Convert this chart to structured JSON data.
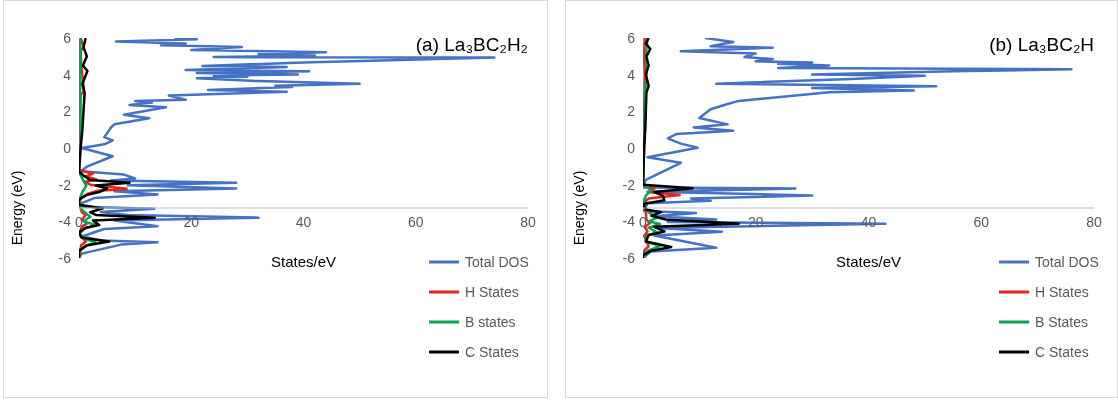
{
  "chart_data": [
    {
      "type": "line",
      "orientation": "horizontal",
      "title": "(a) La₃BC₂H₂",
      "xlabel": "States/eV",
      "ylabel": "Energy (eV)",
      "xlim": [
        0,
        80
      ],
      "xticks": [
        0,
        20,
        40,
        60,
        80
      ],
      "ylim": [
        -6,
        6
      ],
      "yticks": [
        -6,
        -4,
        -2,
        0,
        2,
        4,
        6
      ],
      "legend": "bottom right",
      "series": [
        {
          "name": "Total DOS",
          "color": "#4472c4",
          "x": [
            6.0,
            5.93,
            5.81,
            5.7,
            5.6,
            5.51,
            5.35,
            5.22,
            5.11,
            5.04,
            4.96,
            4.93,
            4.67,
            4.47,
            4.42,
            4.26,
            4.18,
            4.09,
            4.01,
            3.95,
            3.89,
            3.8,
            3.65,
            3.51,
            3.39,
            3.33,
            3.16,
            3.07,
            2.86,
            2.63,
            2.57,
            2.48,
            2.34,
            2.22,
            1.81,
            1.62,
            1.29,
            1.12,
            0.59,
            0.42,
            0.2,
            0.0,
            -0.45,
            -1.0,
            -1.27,
            -1.45,
            -1.66,
            -1.77,
            -1.89,
            -2.03,
            -2.21,
            -2.36,
            -2.53,
            -2.73,
            -3.02,
            -3.2,
            -3.31,
            -3.49,
            -3.66,
            -3.8,
            -3.95,
            -4.27,
            -4.42,
            -4.83,
            -5.04,
            -5.14,
            -5.27,
            -5.76,
            -6.0
          ],
          "values": [
            17,
            21,
            6.6,
            19,
            14.6,
            29,
            20,
            44,
            32,
            42,
            24,
            74,
            40,
            22,
            37,
            19,
            41,
            21,
            39,
            24,
            30,
            21,
            32,
            50,
            35,
            38,
            23,
            37,
            16,
            19,
            10,
            13,
            9,
            15.5,
            8,
            12.5,
            6.3,
            5.7,
            4.5,
            6,
            4.5,
            0.5,
            6,
            1.5,
            0.4,
            8,
            10,
            5.7,
            28,
            8.7,
            28,
            6.3,
            14,
            2.7,
            0.4,
            0.4,
            13.4,
            3.9,
            8.7,
            32,
            6.3,
            14,
            4.5,
            0.5,
            3.9,
            14,
            7.5,
            0.5,
            0
          ]
        },
        {
          "name": "H States",
          "color": "#e8221e",
          "x": [
            6,
            5.5,
            5.3,
            4.5,
            3.1,
            2.9,
            1,
            0,
            -1.2,
            -1.4,
            -1.55,
            -1.7,
            -1.85,
            -2.0,
            -2.22,
            -2.35,
            -2.5,
            -2.7,
            -3.0,
            -3.5,
            -3.65,
            -3.9,
            -4.1,
            -4.3,
            -4.7,
            -5.1,
            -5.3,
            -6
          ],
          "values": [
            0.3,
            0.8,
            0.3,
            0.4,
            0.9,
            0.3,
            0.2,
            0.1,
            0,
            2.5,
            1.2,
            3,
            1,
            2,
            8.5,
            3,
            1.5,
            0.5,
            0,
            0.5,
            1.2,
            0.5,
            1.5,
            0.5,
            0,
            1.2,
            0.4,
            0
          ]
        },
        {
          "name": "B states",
          "color": "#00a651",
          "x": [
            6,
            4,
            2,
            0,
            -1.3,
            -1.8,
            -2.05,
            -2.4,
            -2.9,
            -3.4,
            -3.75,
            -4.0,
            -4.2,
            -4.4,
            -4.7,
            -5.0,
            -5.15,
            -5.35,
            -5.7,
            -6
          ],
          "values": [
            0.2,
            0.2,
            0.2,
            0.1,
            0,
            0.8,
            1.3,
            0.6,
            0,
            0.6,
            2,
            0.8,
            3,
            1,
            0,
            1.5,
            3,
            1,
            0,
            0
          ]
        },
        {
          "name": "C States",
          "color": "#000000",
          "x": [
            6,
            5.5,
            5,
            4.5,
            4.2,
            3.5,
            3,
            2,
            1,
            0,
            -1.3,
            -1.5,
            -1.75,
            -1.9,
            -2.05,
            -2.2,
            -2.4,
            -2.55,
            -2.8,
            -3.1,
            -3.3,
            -3.5,
            -3.65,
            -3.8,
            -3.95,
            -4.2,
            -4.35,
            -4.6,
            -4.9,
            -5.1,
            -5.3,
            -5.6,
            -6
          ],
          "values": [
            1.2,
            0.8,
            1.4,
            0.7,
            1.5,
            0.6,
            1,
            0.8,
            0.6,
            0.3,
            0,
            0.8,
            2,
            9,
            3,
            5,
            3.6,
            1.5,
            0,
            0,
            4.2,
            2,
            3,
            13.5,
            2.5,
            3.6,
            1.2,
            0,
            0.5,
            5.4,
            1.5,
            0,
            0
          ]
        }
      ]
    },
    {
      "type": "line",
      "orientation": "horizontal",
      "title": "(b) La₃BC₂H",
      "xlabel": "States/eV",
      "ylabel": "Energy (eV)",
      "xlim": [
        0,
        80
      ],
      "xticks": [
        0,
        20,
        40,
        60,
        80
      ],
      "ylim": [
        -6,
        6
      ],
      "yticks": [
        -6,
        -4,
        -2,
        0,
        2,
        4,
        6
      ],
      "legend": "bottom right",
      "series": [
        {
          "name": "Total DOS",
          "color": "#4472c4",
          "x": [
            6.0,
            5.78,
            5.55,
            5.47,
            5.28,
            5.16,
            4.96,
            4.85,
            4.73,
            4.67,
            4.59,
            4.5,
            4.36,
            4.3,
            4.18,
            4.01,
            3.94,
            3.76,
            3.51,
            3.37,
            3.27,
            3.13,
            3.04,
            2.57,
            2.4,
            2.11,
            1.64,
            1.29,
            1.12,
            0.94,
            0.77,
            0.53,
            0.24,
            0.01,
            -0.51,
            -0.81,
            -1.74,
            -2.15,
            -2.21,
            -2.38,
            -2.59,
            -2.75,
            -2.88,
            -3.02,
            -3.43,
            -3.55,
            -3.72,
            -3.9,
            -4.03,
            -4.13,
            -4.36,
            -4.57,
            -4.77,
            -5.44,
            -5.64,
            -6.0
          ],
          "values": [
            11,
            16,
            12,
            23,
            6.7,
            20,
            18,
            23,
            20,
            30,
            24,
            33,
            24,
            76,
            55,
            30,
            50,
            37,
            13,
            52,
            30,
            48,
            33,
            17,
            15,
            12,
            10,
            15,
            9,
            16,
            6,
            4.4,
            6.7,
            9.7,
            0.8,
            6.7,
            0.5,
            0,
            27,
            0.8,
            30,
            8.5,
            12,
            0.8,
            0.1,
            9.4,
            2,
            13,
            4.4,
            43,
            2.6,
            14,
            2,
            13,
            1.4,
            0
          ]
        },
        {
          "name": "H States",
          "color": "#e8221e",
          "x": [
            6,
            5,
            4,
            2,
            0,
            -2.0,
            -2.2,
            -2.4,
            -2.57,
            -2.75,
            -3.0,
            -3.5,
            -3.9,
            -4.1,
            -4.3,
            -4.55,
            -4.8,
            -5.35,
            -5.6,
            -6
          ],
          "values": [
            0.3,
            0.2,
            0.3,
            0.2,
            0.1,
            0,
            2,
            1,
            6.5,
            1,
            0,
            0.5,
            0.6,
            1.2,
            0.3,
            0.8,
            0.2,
            1,
            0.2,
            0
          ]
        },
        {
          "name": "B States",
          "color": "#00a651",
          "x": [
            6,
            5,
            4,
            3,
            2,
            0,
            -2.0,
            -2.3,
            -2.6,
            -3.0,
            -3.5,
            -3.8,
            -4.0,
            -4.15,
            -4.35,
            -4.6,
            -4.8,
            -5.1,
            -5.35,
            -5.6,
            -6
          ],
          "values": [
            0.8,
            0.5,
            0.6,
            0.4,
            0.4,
            0.2,
            0,
            1.5,
            0.5,
            0,
            1,
            2.5,
            1,
            3,
            1,
            2.5,
            0.5,
            0.5,
            3,
            0.8,
            0
          ]
        },
        {
          "name": "C States",
          "color": "#000000",
          "x": [
            6,
            5.7,
            5.4,
            5,
            4.5,
            4,
            3.4,
            3,
            2,
            1,
            0,
            -2.0,
            -2.2,
            -2.4,
            -2.6,
            -2.85,
            -3.05,
            -3.35,
            -3.5,
            -3.7,
            -3.9,
            -4.13,
            -4.3,
            -4.55,
            -4.75,
            -5.1,
            -5.4,
            -5.6,
            -5.85,
            -6
          ],
          "values": [
            1,
            0.5,
            1.3,
            0.6,
            1,
            0.5,
            1,
            0.6,
            0.5,
            0.4,
            0.2,
            0,
            8.8,
            2,
            3.5,
            3.8,
            0,
            0.5,
            3.2,
            1.5,
            4,
            17,
            2,
            3.8,
            1,
            0.5,
            5,
            1.5,
            0,
            0
          ]
        }
      ]
    }
  ]
}
